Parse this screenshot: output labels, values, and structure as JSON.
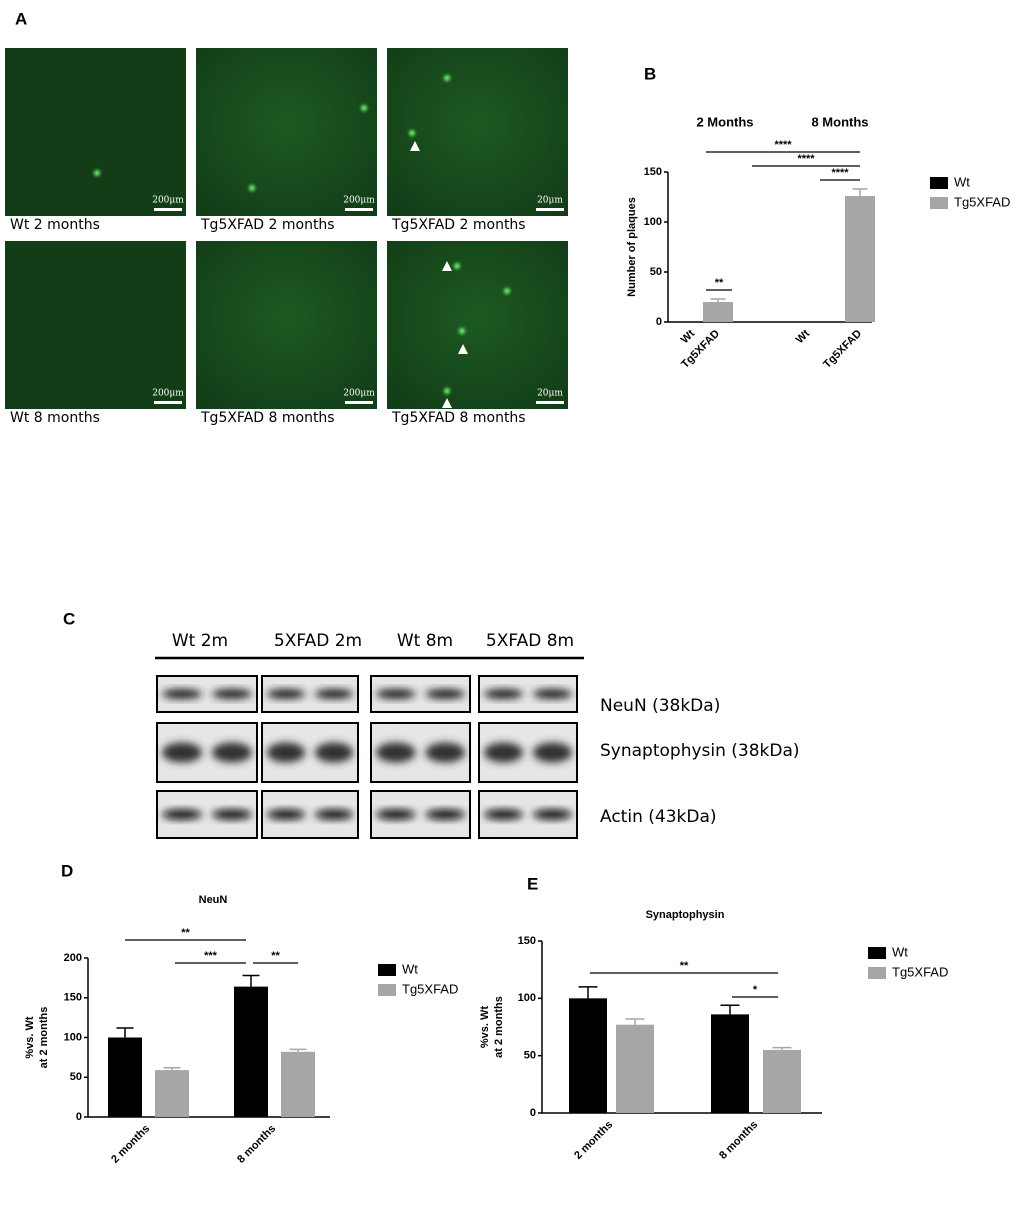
{
  "panels": {
    "a": "A",
    "b": "B",
    "c": "C",
    "d": "D",
    "e": "E"
  },
  "micrographs": [
    {
      "caption": "Wt 2 months",
      "scale": "200μm"
    },
    {
      "caption": "Tg5XFAD 2 months",
      "scale": "200μm"
    },
    {
      "caption": "Tg5XFAD 2 months",
      "scale": "20μm"
    },
    {
      "caption": "Wt 8 months",
      "scale": "200μm"
    },
    {
      "caption": "Tg5XFAD 8 months",
      "scale": "200μm"
    },
    {
      "caption": "Tg5XFAD 8 months",
      "scale": "20μm"
    }
  ],
  "blot": {
    "lanes": [
      "Wt 2m",
      "5XFAD 2m",
      "Wt 8m",
      "5XFAD 8m"
    ],
    "proteins": [
      "NeuN (38kDa)",
      "Synaptophysin (38kDa)",
      "Actin (43kDa)"
    ]
  },
  "chart_data": [
    {
      "type": "bar",
      "groups": [
        "2 Months",
        "8 Months"
      ],
      "categories": [
        "Wt",
        "Tg5XFAD",
        "Wt",
        "Tg5XFAD"
      ],
      "ylabel": "Number of plaques",
      "ylim": [
        0,
        150
      ],
      "yticks": [
        0,
        50,
        100,
        150
      ],
      "series": [
        {
          "name": "Wt",
          "color": "#000000",
          "values": [
            0,
            null,
            0,
            null
          ]
        },
        {
          "name": "Tg5XFAD",
          "color": "#a6a6a6",
          "values": [
            null,
            20,
            null,
            126
          ],
          "errors": [
            null,
            3,
            null,
            7
          ]
        }
      ],
      "significance": [
        "****",
        "****",
        "****",
        "**"
      ]
    },
    {
      "type": "bar",
      "title": "NeuN",
      "categories": [
        "2 months",
        "8 months"
      ],
      "ylabel": [
        "%vs. Wt",
        "at 2 months"
      ],
      "ylim": [
        0,
        200
      ],
      "yticks": [
        0,
        50,
        100,
        150,
        200
      ],
      "series": [
        {
          "name": "Wt",
          "color": "#000000",
          "values": [
            100,
            164
          ],
          "errors": [
            12,
            14
          ]
        },
        {
          "name": "Tg5XFAD",
          "color": "#a6a6a6",
          "values": [
            59,
            82
          ],
          "errors": [
            3,
            3
          ]
        }
      ],
      "significance": [
        "**",
        "***",
        "**"
      ]
    },
    {
      "type": "bar",
      "title": "Synaptophysin",
      "categories": [
        "2 months",
        "8 months"
      ],
      "ylabel": [
        "%vs. Wt",
        "at 2 months"
      ],
      "ylim": [
        0,
        150
      ],
      "yticks": [
        0,
        50,
        100,
        150
      ],
      "series": [
        {
          "name": "Wt",
          "color": "#000000",
          "values": [
            100,
            86
          ],
          "errors": [
            10,
            8
          ]
        },
        {
          "name": "Tg5XFAD",
          "color": "#a6a6a6",
          "values": [
            77,
            55
          ],
          "errors": [
            5,
            2
          ]
        }
      ],
      "significance": [
        "**",
        "*"
      ]
    }
  ]
}
